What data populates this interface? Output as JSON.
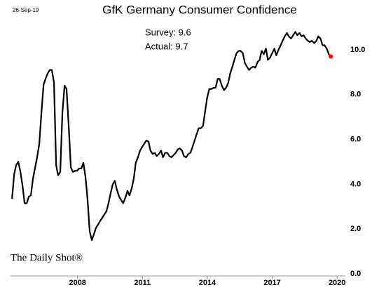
{
  "chart_data": {
    "type": "line",
    "title": "GfK Germany Consumer Confidence",
    "date": "26-Sep-19",
    "annotations": [
      "Survey: 9.6",
      "Actual:  9.7"
    ],
    "source": "The Daily Shot®",
    "color": "#000000",
    "last_point_color": "#ff0000",
    "x": [
      2004.97,
      2005.07,
      2005.16,
      2005.26,
      2005.36,
      2005.46,
      2005.55,
      2005.65,
      2005.75,
      2005.84,
      2005.94,
      2006.04,
      2006.13,
      2006.23,
      2006.33,
      2006.43,
      2006.52,
      2006.62,
      2006.72,
      2006.81,
      2006.91,
      2007.01,
      2007.1,
      2007.2,
      2007.3,
      2007.4,
      2007.49,
      2007.59,
      2007.69,
      2007.78,
      2007.88,
      2007.98,
      2008.07,
      2008.17,
      2008.27,
      2008.37,
      2008.46,
      2008.56,
      2008.66,
      2008.75,
      2008.85,
      2008.95,
      2009.04,
      2009.14,
      2009.24,
      2009.34,
      2009.43,
      2009.53,
      2009.63,
      2009.72,
      2009.82,
      2009.92,
      2010.01,
      2010.11,
      2010.21,
      2010.31,
      2010.4,
      2010.5,
      2010.6,
      2010.69,
      2010.79,
      2010.89,
      2010.98,
      2011.08,
      2011.18,
      2011.28,
      2011.37,
      2011.47,
      2011.57,
      2011.66,
      2011.76,
      2011.86,
      2011.95,
      2012.05,
      2012.15,
      2012.25,
      2012.34,
      2012.44,
      2012.54,
      2012.63,
      2012.73,
      2012.83,
      2012.92,
      2013.02,
      2013.12,
      2013.22,
      2013.31,
      2013.41,
      2013.51,
      2013.6,
      2013.7,
      2013.8,
      2013.89,
      2013.99,
      2014.09,
      2014.19,
      2014.28,
      2014.38,
      2014.48,
      2014.57,
      2014.67,
      2014.77,
      2014.86,
      2014.96,
      2015.06,
      2015.16,
      2015.25,
      2015.35,
      2015.45,
      2015.54,
      2015.64,
      2015.74,
      2015.83,
      2015.93,
      2016.03,
      2016.13,
      2016.22,
      2016.32,
      2016.42,
      2016.51,
      2016.61,
      2016.71,
      2016.8,
      2016.9,
      2017.0,
      2017.1,
      2017.19,
      2017.29,
      2017.39,
      2017.48,
      2017.58,
      2017.68,
      2017.77,
      2017.87,
      2017.97,
      2018.07,
      2018.16,
      2018.26,
      2018.36,
      2018.45,
      2018.55,
      2018.65,
      2018.74,
      2018.84,
      2018.94,
      2019.04,
      2019.13,
      2019.23,
      2019.33,
      2019.42,
      2019.52,
      2019.62,
      2019.71
    ],
    "values": [
      3.35,
      4.45,
      4.85,
      5.0,
      4.55,
      3.9,
      3.15,
      3.15,
      3.45,
      3.5,
      4.25,
      4.75,
      5.2,
      5.8,
      7.2,
      8.45,
      8.7,
      8.95,
      9.1,
      9.1,
      8.55,
      4.85,
      4.4,
      4.55,
      7.2,
      8.4,
      8.25,
      6.6,
      4.75,
      4.55,
      4.6,
      4.6,
      4.7,
      4.7,
      4.95,
      4.3,
      3.35,
      1.9,
      1.5,
      1.75,
      2.05,
      2.2,
      2.35,
      2.5,
      2.65,
      2.8,
      3.15,
      3.6,
      4.0,
      4.15,
      3.75,
      3.45,
      3.3,
      3.15,
      3.4,
      3.7,
      3.5,
      3.8,
      4.25,
      4.95,
      5.2,
      5.5,
      5.65,
      5.8,
      5.95,
      5.9,
      5.5,
      5.35,
      5.4,
      5.25,
      5.35,
      5.5,
      5.2,
      5.4,
      5.4,
      5.25,
      5.2,
      5.3,
      5.4,
      5.55,
      5.6,
      5.5,
      5.25,
      5.2,
      5.35,
      5.4,
      5.65,
      5.95,
      6.25,
      6.5,
      6.5,
      6.6,
      7.2,
      7.85,
      8.25,
      8.25,
      8.3,
      8.3,
      8.7,
      8.7,
      8.4,
      8.2,
      8.3,
      8.5,
      8.95,
      9.25,
      9.55,
      9.85,
      9.95,
      9.95,
      9.85,
      9.4,
      9.25,
      9.1,
      9.2,
      9.25,
      9.2,
      9.45,
      9.55,
      9.95,
      9.8,
      10.05,
      9.55,
      9.65,
      9.85,
      10.05,
      9.75,
      10.0,
      10.2,
      10.4,
      10.6,
      10.75,
      10.6,
      10.5,
      10.65,
      10.8,
      10.65,
      10.75,
      10.6,
      10.65,
      10.5,
      10.4,
      10.35,
      10.4,
      10.3,
      10.4,
      10.6,
      10.5,
      10.2,
      10.2,
      10.05,
      9.8,
      9.7
    ],
    "xlim": [
      2004.9,
      2020.35
    ],
    "xticks": [
      2008,
      2011,
      2014,
      2017,
      2020
    ],
    "ylim": [
      0,
      11
    ],
    "yticks": [
      {
        "value": 0,
        "label": "0.0"
      },
      {
        "value": 2,
        "label": "2.0"
      },
      {
        "value": 4,
        "label": "4.0"
      },
      {
        "value": 6,
        "label": "6.0"
      },
      {
        "value": 8,
        "label": "8.0"
      },
      {
        "value": 10,
        "label": "10.0"
      }
    ]
  }
}
